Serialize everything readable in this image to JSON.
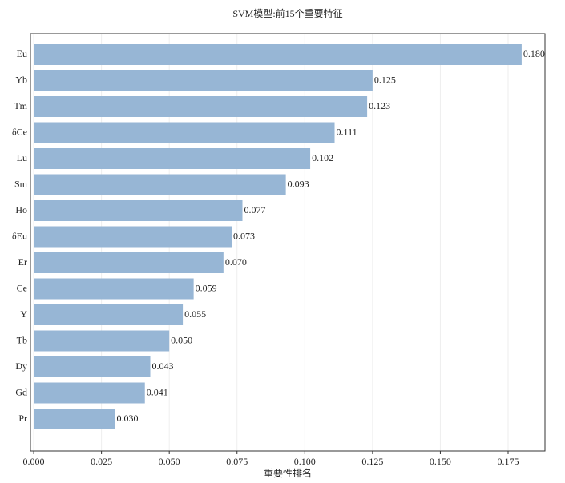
{
  "chart_data": {
    "type": "barh",
    "title": "SVM模型:前15个重要特征",
    "xlabel": "重要性排名",
    "categories": [
      "Eu",
      "Yb",
      "Tm",
      "δCe",
      "Lu",
      "Sm",
      "Ho",
      "δEu",
      "Er",
      "Ce",
      "Y",
      "Tb",
      "Dy",
      "Gd",
      "Pr"
    ],
    "values": [
      0.18,
      0.125,
      0.123,
      0.111,
      0.102,
      0.093,
      0.077,
      0.073,
      0.07,
      0.059,
      0.055,
      0.05,
      0.043,
      0.041,
      0.03
    ],
    "value_labels": [
      "0.180",
      "0.125",
      "0.123",
      "0.111",
      "0.102",
      "0.093",
      "0.077",
      "0.073",
      "0.070",
      "0.059",
      "0.055",
      "0.050",
      "0.043",
      "0.041",
      "0.030"
    ],
    "color": "#97b6d5",
    "xlim": [
      -0.0012,
      0.1886
    ],
    "xticks": [
      {
        "value": 0,
        "label": "0.000"
      },
      {
        "value": 0.025,
        "label": "0.025"
      },
      {
        "value": 0.05,
        "label": "0.050"
      },
      {
        "value": 0.075,
        "label": "0.075"
      },
      {
        "value": 0.1,
        "label": "0.100"
      },
      {
        "value": 0.125,
        "label": "0.125"
      },
      {
        "value": 0.15,
        "label": "0.150"
      },
      {
        "value": 0.175,
        "label": "0.175"
      }
    ],
    "grid": true
  }
}
